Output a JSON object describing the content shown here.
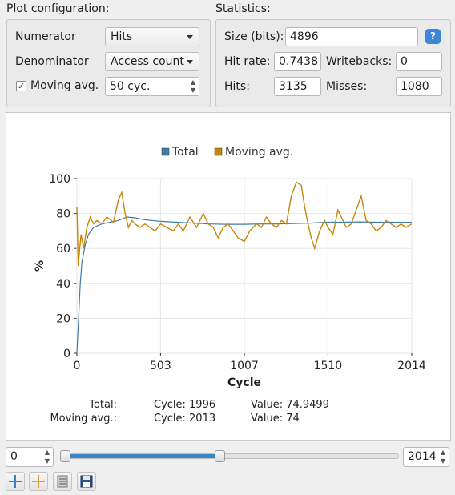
{
  "plot_config": {
    "title": "Plot configuration:",
    "numerator_label": "Numerator",
    "numerator_value": "Hits",
    "denominator_label": "Denominator",
    "denominator_value": "Access count",
    "moving_avg_label": "Moving avg.",
    "moving_avg_checked": true,
    "check_mark": "✓",
    "moving_avg_value": "50 cyc."
  },
  "statistics": {
    "title": "Statistics:",
    "size_label": "Size (bits):",
    "size_value": "4896",
    "help_icon": "?",
    "hit_rate_label": "Hit rate:",
    "hit_rate_value": "0.7438",
    "writebacks_label": "Writebacks:",
    "writebacks_value": "0",
    "hits_label": "Hits:",
    "hits_value": "3135",
    "misses_label": "Misses:",
    "misses_value": "1080"
  },
  "chart_data": {
    "type": "line",
    "xlabel": "Cycle",
    "ylabel": "%",
    "xlim": [
      0,
      2014
    ],
    "ylim": [
      0,
      100
    ],
    "x_ticks": [
      "0",
      "503",
      "1007",
      "1510",
      "2014"
    ],
    "y_ticks": [
      "0",
      "20",
      "40",
      "60",
      "80",
      "100"
    ],
    "legend_position": "top",
    "series": [
      {
        "name": "Total",
        "color": "#3e7ca8",
        "x": [
          0,
          10,
          20,
          30,
          50,
          70,
          100,
          150,
          200,
          250,
          300,
          350,
          400,
          450,
          503,
          600,
          700,
          800,
          900,
          1007,
          1100,
          1200,
          1300,
          1400,
          1510,
          1600,
          1700,
          1800,
          1900,
          1996,
          2014
        ],
        "y": [
          0,
          20,
          40,
          52,
          62,
          68,
          72,
          74,
          75,
          76,
          78,
          77.5,
          76.5,
          76,
          75.5,
          75,
          74.5,
          74,
          73.8,
          73.8,
          74,
          74,
          74.2,
          74.5,
          75,
          75,
          75.2,
          75,
          75,
          74.9499,
          74.9
        ]
      },
      {
        "name": "Moving avg.",
        "color": "#c8860a",
        "x": [
          0,
          8,
          15,
          25,
          40,
          60,
          80,
          100,
          120,
          150,
          180,
          220,
          250,
          270,
          290,
          310,
          330,
          350,
          380,
          410,
          440,
          470,
          503,
          540,
          580,
          610,
          640,
          680,
          720,
          760,
          790,
          820,
          850,
          880,
          910,
          940,
          970,
          1007,
          1040,
          1080,
          1110,
          1140,
          1170,
          1200,
          1230,
          1260,
          1290,
          1320,
          1350,
          1370,
          1390,
          1410,
          1430,
          1460,
          1490,
          1510,
          1540,
          1570,
          1600,
          1620,
          1650,
          1680,
          1710,
          1740,
          1770,
          1800,
          1830,
          1860,
          1890,
          1920,
          1950,
          1980,
          2013
        ],
        "y": [
          84,
          50,
          58,
          68,
          60,
          72,
          78,
          74,
          76,
          74,
          78,
          75,
          88,
          92,
          80,
          72,
          76,
          74,
          72,
          74,
          72,
          70,
          74,
          72,
          70,
          74,
          70,
          78,
          72,
          80,
          74,
          72,
          66,
          72,
          74,
          70,
          66,
          64,
          70,
          74,
          72,
          78,
          74,
          72,
          76,
          74,
          90,
          98,
          96,
          84,
          74,
          66,
          60,
          70,
          76,
          72,
          68,
          82,
          76,
          72,
          74,
          82,
          90,
          76,
          74,
          70,
          72,
          76,
          74,
          72,
          74,
          72,
          74
        ]
      }
    ]
  },
  "readout": {
    "total_label": "Total:",
    "total_cycle": "Cycle: 1996",
    "total_value": "Value: 74.9499",
    "moving_label": "Moving avg.:",
    "moving_cycle": "Cycle: 2013",
    "moving_value": "Value: 74"
  },
  "range": {
    "min_value": "0",
    "max_value": "2014",
    "slider_fraction": 0.47
  },
  "toolbar": {
    "icons": [
      "crosshair-blue-icon",
      "crosshair-orange-icon",
      "list-icon",
      "save-icon"
    ]
  }
}
